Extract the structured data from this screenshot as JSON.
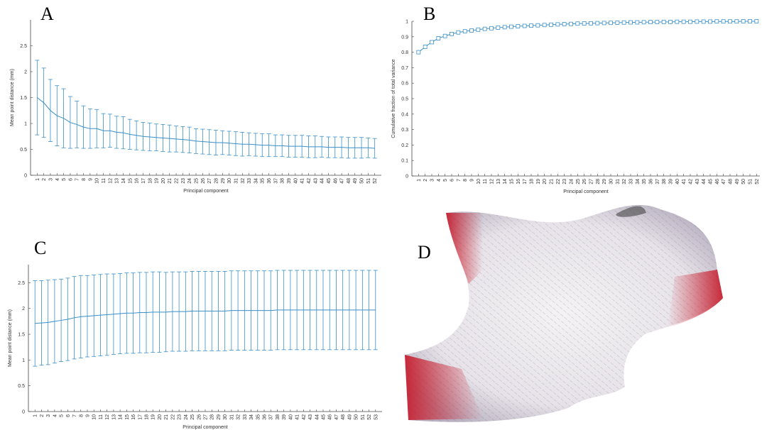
{
  "chart_data": [
    {
      "type": "errorbar",
      "label": "A",
      "xlabel": "Principal component",
      "ylabel": "Mean point distance (mm)",
      "color": "#3b8fc7",
      "x": [
        1,
        2,
        3,
        4,
        5,
        6,
        7,
        8,
        9,
        10,
        11,
        12,
        13,
        14,
        15,
        16,
        17,
        18,
        19,
        20,
        21,
        22,
        23,
        24,
        25,
        26,
        27,
        28,
        29,
        30,
        31,
        32,
        33,
        34,
        35,
        36,
        37,
        38,
        39,
        40,
        41,
        42,
        43,
        44,
        45,
        46,
        47,
        48,
        49,
        50,
        51,
        52
      ],
      "values": [
        1.5,
        1.4,
        1.25,
        1.15,
        1.1,
        1.02,
        0.98,
        0.93,
        0.9,
        0.9,
        0.86,
        0.86,
        0.83,
        0.82,
        0.79,
        0.77,
        0.75,
        0.74,
        0.73,
        0.72,
        0.71,
        0.7,
        0.69,
        0.68,
        0.66,
        0.65,
        0.64,
        0.63,
        0.63,
        0.62,
        0.61,
        0.6,
        0.6,
        0.59,
        0.58,
        0.58,
        0.57,
        0.57,
        0.56,
        0.56,
        0.56,
        0.55,
        0.55,
        0.55,
        0.54,
        0.54,
        0.54,
        0.53,
        0.53,
        0.53,
        0.53,
        0.52
      ],
      "errors": [
        0.72,
        0.67,
        0.6,
        0.58,
        0.57,
        0.5,
        0.45,
        0.41,
        0.38,
        0.37,
        0.33,
        0.32,
        0.31,
        0.31,
        0.29,
        0.28,
        0.27,
        0.27,
        0.26,
        0.26,
        0.26,
        0.25,
        0.25,
        0.25,
        0.24,
        0.24,
        0.24,
        0.24,
        0.23,
        0.23,
        0.23,
        0.23,
        0.22,
        0.22,
        0.22,
        0.22,
        0.21,
        0.21,
        0.21,
        0.21,
        0.21,
        0.21,
        0.21,
        0.2,
        0.2,
        0.2,
        0.2,
        0.2,
        0.2,
        0.2,
        0.19,
        0.19
      ],
      "xlim": [
        0,
        53
      ],
      "xticks": [
        1,
        2,
        3,
        4,
        5,
        6,
        7,
        8,
        9,
        10,
        11,
        12,
        13,
        14,
        15,
        16,
        17,
        18,
        19,
        20,
        21,
        22,
        23,
        24,
        25,
        26,
        27,
        28,
        29,
        30,
        31,
        32,
        33,
        34,
        35,
        36,
        37,
        38,
        39,
        40,
        41,
        42,
        43,
        44,
        45,
        46,
        47,
        48,
        49,
        50,
        51,
        52
      ],
      "ylim": [
        0,
        3
      ],
      "yticks": [
        0,
        0.5,
        1,
        1.5,
        2,
        2.5
      ]
    },
    {
      "type": "line",
      "label": "B",
      "xlabel": "Principal component",
      "ylabel": "Cumulative fraction of total variance",
      "color": "#3b8fc7",
      "x": [
        1,
        2,
        3,
        4,
        5,
        6,
        7,
        8,
        9,
        10,
        11,
        12,
        13,
        14,
        15,
        16,
        17,
        18,
        19,
        20,
        21,
        22,
        23,
        24,
        25,
        26,
        27,
        28,
        29,
        30,
        31,
        32,
        33,
        34,
        35,
        36,
        37,
        38,
        39,
        40,
        41,
        42,
        43,
        44,
        45,
        46,
        47,
        48,
        49,
        50,
        51,
        52
      ],
      "values": [
        0.8,
        0.835,
        0.865,
        0.89,
        0.905,
        0.918,
        0.928,
        0.935,
        0.941,
        0.946,
        0.951,
        0.955,
        0.959,
        0.962,
        0.965,
        0.968,
        0.97,
        0.972,
        0.974,
        0.976,
        0.978,
        0.98,
        0.982,
        0.983,
        0.985,
        0.986,
        0.987,
        0.988,
        0.989,
        0.99,
        0.991,
        0.992,
        0.993,
        0.993,
        0.994,
        0.995,
        0.995,
        0.996,
        0.996,
        0.997,
        0.997,
        0.997,
        0.998,
        0.998,
        0.998,
        0.999,
        0.999,
        0.999,
        0.999,
        1,
        1,
        1
      ],
      "xlim": [
        0,
        52.5
      ],
      "xticks": [
        1,
        2,
        3,
        4,
        5,
        6,
        7,
        8,
        9,
        10,
        11,
        12,
        13,
        14,
        15,
        16,
        17,
        18,
        19,
        20,
        21,
        22,
        23,
        24,
        25,
        26,
        27,
        28,
        29,
        30,
        31,
        32,
        33,
        34,
        35,
        36,
        37,
        38,
        39,
        40,
        41,
        42,
        43,
        44,
        45,
        46,
        47,
        48,
        49,
        50,
        51,
        52
      ],
      "ylim": [
        0,
        1
      ],
      "yticks": [
        0,
        0.1,
        0.2,
        0.3,
        0.4,
        0.5,
        0.6,
        0.7,
        0.8,
        0.9,
        1
      ]
    },
    {
      "type": "errorbar",
      "label": "C",
      "xlabel": "Principal component",
      "ylabel": "Mean point distance (mm)",
      "color": "#3b8fc7",
      "x": [
        1,
        2,
        3,
        4,
        5,
        6,
        7,
        8,
        9,
        10,
        11,
        12,
        13,
        14,
        15,
        16,
        17,
        18,
        19,
        20,
        21,
        22,
        23,
        24,
        25,
        26,
        27,
        28,
        29,
        30,
        31,
        32,
        33,
        34,
        35,
        36,
        37,
        38,
        39,
        40,
        41,
        42,
        43,
        44,
        45,
        46,
        47,
        48,
        49,
        50,
        51,
        52,
        53
      ],
      "values": [
        1.71,
        1.72,
        1.73,
        1.75,
        1.77,
        1.79,
        1.82,
        1.84,
        1.85,
        1.86,
        1.87,
        1.88,
        1.89,
        1.9,
        1.91,
        1.91,
        1.92,
        1.92,
        1.93,
        1.93,
        1.93,
        1.94,
        1.94,
        1.94,
        1.95,
        1.95,
        1.95,
        1.95,
        1.95,
        1.95,
        1.96,
        1.96,
        1.96,
        1.96,
        1.96,
        1.96,
        1.96,
        1.97,
        1.97,
        1.97,
        1.97,
        1.97,
        1.97,
        1.97,
        1.97,
        1.97,
        1.97,
        1.97,
        1.97,
        1.97,
        1.97,
        1.97,
        1.97
      ],
      "errors": [
        0.83,
        0.82,
        0.82,
        0.81,
        0.8,
        0.8,
        0.8,
        0.8,
        0.79,
        0.79,
        0.79,
        0.79,
        0.78,
        0.78,
        0.78,
        0.78,
        0.78,
        0.78,
        0.78,
        0.78,
        0.77,
        0.77,
        0.77,
        0.77,
        0.77,
        0.77,
        0.77,
        0.77,
        0.77,
        0.77,
        0.77,
        0.77,
        0.77,
        0.77,
        0.77,
        0.77,
        0.77,
        0.77,
        0.77,
        0.77,
        0.77,
        0.77,
        0.77,
        0.77,
        0.77,
        0.77,
        0.77,
        0.77,
        0.77,
        0.77,
        0.77,
        0.77,
        0.77
      ],
      "xlim": [
        0,
        54
      ],
      "xticks": [
        1,
        2,
        3,
        4,
        5,
        6,
        7,
        8,
        9,
        10,
        11,
        12,
        13,
        14,
        15,
        16,
        17,
        18,
        19,
        20,
        21,
        22,
        23,
        24,
        25,
        26,
        27,
        28,
        29,
        30,
        31,
        32,
        33,
        34,
        35,
        36,
        37,
        38,
        39,
        40,
        41,
        42,
        43,
        44,
        45,
        46,
        47,
        48,
        49,
        50,
        51,
        52,
        53
      ],
      "ylim": [
        0,
        2.85
      ],
      "yticks": [
        0,
        0.5,
        1,
        1.5,
        2,
        2.5
      ]
    }
  ],
  "panel_d": {
    "label": "D"
  }
}
